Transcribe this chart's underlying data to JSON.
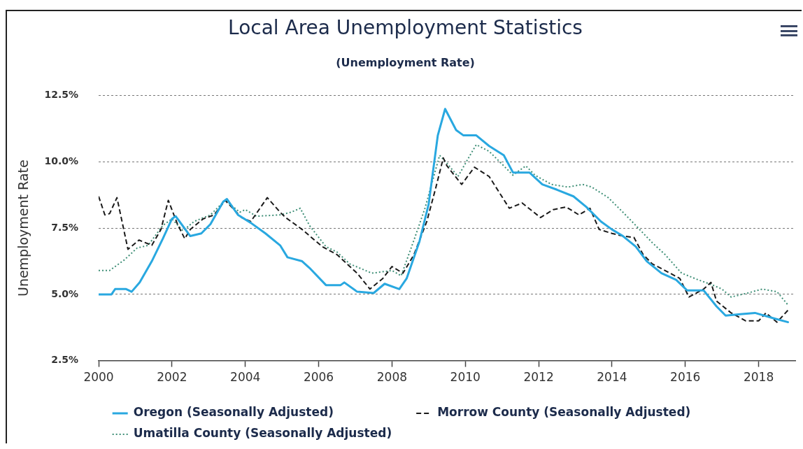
{
  "chart_data": {
    "type": "line",
    "title": "Local Area Unemployment Statistics",
    "subtitle": "(Unemployment Rate)",
    "ylabel": "Unemployment Rate",
    "xlim": [
      2000,
      2019
    ],
    "xticks": [
      2000,
      2002,
      2004,
      2006,
      2008,
      2010,
      2012,
      2014,
      2016,
      2018
    ],
    "ylim": [
      2.5,
      12.5
    ],
    "yticks": [
      {
        "value": 2.5,
        "label": "2.5%"
      },
      {
        "value": 5,
        "label": "5.0%"
      },
      {
        "value": 7.5,
        "label": "7.5%"
      },
      {
        "value": 10,
        "label": "10.0%"
      },
      {
        "value": 12.5,
        "label": "12.5%"
      }
    ],
    "grid": "y",
    "legend": "bottom",
    "marker": "none",
    "series": [
      {
        "name": "Oregon (Seasonally Adjusted)",
        "color": "#29a8e0",
        "line_style": "solid",
        "x": [
          2000.0,
          2000.35,
          2000.45,
          2000.75,
          2000.9,
          2001.12,
          2001.45,
          2001.75,
          2002.0,
          2002.1,
          2002.5,
          2002.8,
          2003.05,
          2003.4,
          2003.5,
          2003.8,
          2004.15,
          2004.55,
          2004.95,
          2005.15,
          2005.55,
          2005.75,
          2006.2,
          2006.6,
          2006.7,
          2007.05,
          2007.5,
          2007.8,
          2008.2,
          2008.4,
          2008.75,
          2009.0,
          2009.25,
          2009.45,
          2009.75,
          2009.95,
          2010.3,
          2010.65,
          2011.05,
          2011.3,
          2011.75,
          2012.1,
          2012.5,
          2012.95,
          2013.3,
          2013.7,
          2014.0,
          2014.3,
          2014.65,
          2014.95,
          2015.35,
          2015.75,
          2016.05,
          2016.5,
          2016.85,
          2017.1,
          2017.5,
          2017.9,
          2018.4,
          2018.8
        ],
        "values": [
          5.0,
          5.0,
          5.2,
          5.2,
          5.1,
          5.45,
          6.25,
          7.1,
          7.85,
          7.95,
          7.2,
          7.3,
          7.65,
          8.5,
          8.6,
          8.0,
          7.7,
          7.3,
          6.85,
          6.4,
          6.25,
          6.0,
          5.35,
          5.35,
          5.45,
          5.1,
          5.05,
          5.4,
          5.2,
          5.6,
          7.0,
          8.4,
          11.0,
          12.0,
          11.2,
          11.0,
          11.0,
          10.6,
          10.25,
          9.6,
          9.6,
          9.15,
          8.95,
          8.7,
          8.3,
          7.75,
          7.45,
          7.2,
          6.8,
          6.25,
          5.8,
          5.55,
          5.15,
          5.15,
          4.55,
          4.2,
          4.25,
          4.3,
          4.1,
          3.95
        ]
      },
      {
        "name": "Morrow County (Seasonally Adjusted)",
        "color": "#1a1a1a",
        "line_style": "dashed",
        "x": [
          2000.0,
          2000.17,
          2000.3,
          2000.5,
          2000.8,
          2001.1,
          2001.45,
          2001.7,
          2001.9,
          2002.15,
          2002.35,
          2002.5,
          2002.85,
          2003.15,
          2003.45,
          2003.9,
          2004.15,
          2004.6,
          2004.95,
          2005.1,
          2005.55,
          2006.1,
          2006.5,
          2007.05,
          2007.4,
          2007.75,
          2008.0,
          2008.3,
          2008.6,
          2008.95,
          2009.2,
          2009.4,
          2009.5,
          2009.9,
          2010.25,
          2010.65,
          2011.2,
          2011.55,
          2012.05,
          2012.4,
          2012.75,
          2013.1,
          2013.4,
          2013.65,
          2014.0,
          2014.3,
          2014.6,
          2014.85,
          2015.1,
          2015.45,
          2015.85,
          2016.1,
          2016.5,
          2016.7,
          2016.85,
          2017.25,
          2017.65,
          2018.0,
          2018.2,
          2018.5,
          2018.8
        ],
        "values": [
          8.7,
          8.0,
          8.05,
          8.65,
          6.7,
          7.05,
          6.85,
          7.45,
          8.55,
          7.65,
          7.1,
          7.45,
          7.85,
          8.0,
          8.55,
          7.9,
          7.75,
          8.65,
          8.1,
          7.9,
          7.45,
          6.8,
          6.5,
          5.8,
          5.2,
          5.6,
          6.05,
          5.8,
          6.5,
          7.75,
          9.05,
          10.15,
          9.85,
          9.15,
          9.8,
          9.45,
          8.25,
          8.45,
          7.9,
          8.2,
          8.3,
          8.0,
          8.25,
          7.45,
          7.3,
          7.2,
          7.15,
          6.5,
          6.15,
          5.9,
          5.6,
          4.9,
          5.2,
          5.45,
          4.75,
          4.3,
          4.0,
          4.0,
          4.3,
          3.95,
          4.4
        ]
      },
      {
        "name": "Umatilla County (Seasonally Adjusted)",
        "color": "#3f8f77",
        "line_style": "dotted",
        "x": [
          2000.0,
          2000.3,
          2000.7,
          2001.05,
          2001.35,
          2001.75,
          2002.0,
          2002.3,
          2002.6,
          2003.05,
          2003.45,
          2003.85,
          2004.0,
          2004.3,
          2004.95,
          2005.25,
          2005.5,
          2005.75,
          2006.2,
          2006.5,
          2006.85,
          2007.45,
          2008.0,
          2008.25,
          2008.6,
          2008.9,
          2009.1,
          2009.3,
          2009.5,
          2009.8,
          2010.15,
          2010.3,
          2010.65,
          2011.05,
          2011.3,
          2011.65,
          2011.9,
          2012.35,
          2012.8,
          2013.2,
          2013.45,
          2013.9,
          2014.3,
          2014.65,
          2015.1,
          2015.45,
          2015.9,
          2016.35,
          2016.75,
          2017.0,
          2017.25,
          2017.7,
          2018.1,
          2018.5,
          2018.8
        ],
        "values": [
          5.9,
          5.9,
          6.3,
          6.75,
          6.85,
          7.6,
          7.85,
          7.4,
          7.75,
          8.0,
          8.55,
          8.1,
          8.2,
          7.95,
          8.0,
          8.1,
          8.25,
          7.6,
          6.8,
          6.6,
          6.15,
          5.8,
          5.9,
          5.7,
          7.05,
          8.25,
          9.25,
          10.25,
          9.95,
          9.45,
          10.3,
          10.65,
          10.4,
          9.85,
          9.5,
          9.85,
          9.5,
          9.15,
          9.05,
          9.15,
          9.05,
          8.65,
          8.1,
          7.6,
          6.95,
          6.5,
          5.8,
          5.55,
          5.35,
          5.2,
          4.9,
          5.05,
          5.2,
          5.1,
          4.6
        ]
      }
    ]
  }
}
